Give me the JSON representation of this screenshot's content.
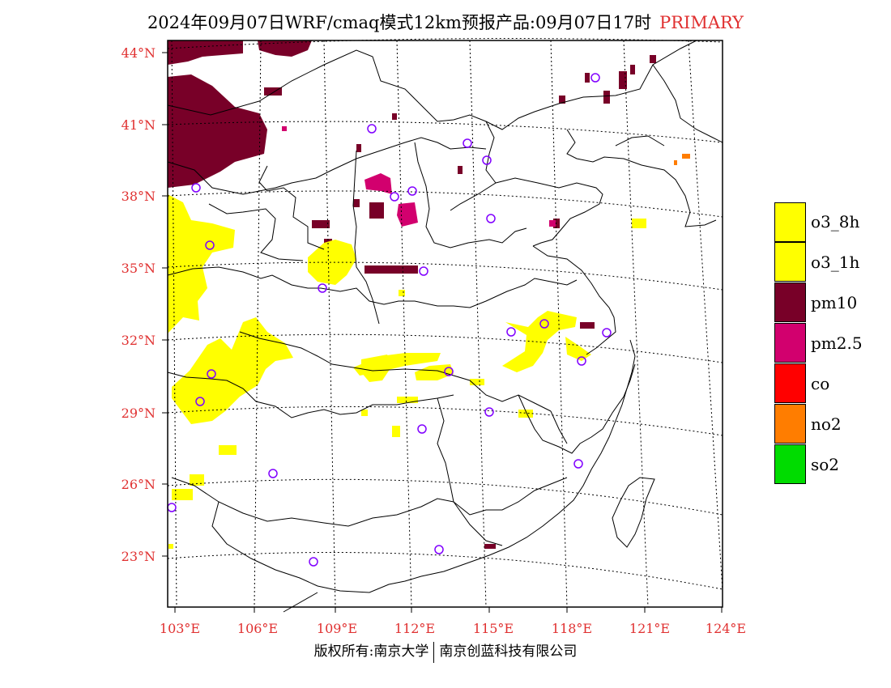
{
  "title": {
    "main": "2024年09月07日WRF/cmaq模式12km预报产品:09月07日17时",
    "tag": "PRIMARY"
  },
  "map": {
    "lat_labels": [
      "44°N",
      "41°N",
      "38°N",
      "35°N",
      "32°N",
      "29°N",
      "26°N",
      "23°N"
    ],
    "lon_labels": [
      "103°E",
      "106°E",
      "109°E",
      "112°E",
      "115°E",
      "118°E",
      "121°E",
      "124°E"
    ],
    "label_color": "#e03030"
  },
  "legend": {
    "items": [
      {
        "label": "o3_8h",
        "color": "#ffff00"
      },
      {
        "label": "o3_1h",
        "color": "#ffff00"
      },
      {
        "label": "pm10",
        "color": "#780028"
      },
      {
        "label": "pm2.5",
        "color": "#d2006e"
      },
      {
        "label": "co",
        "color": "#ff0000"
      },
      {
        "label": "no2",
        "color": "#ff7d00"
      },
      {
        "label": "so2",
        "color": "#00dc00"
      }
    ]
  },
  "footer": {
    "left": "版权所有:南京大学",
    "right": "南京创蓝科技有限公司"
  }
}
